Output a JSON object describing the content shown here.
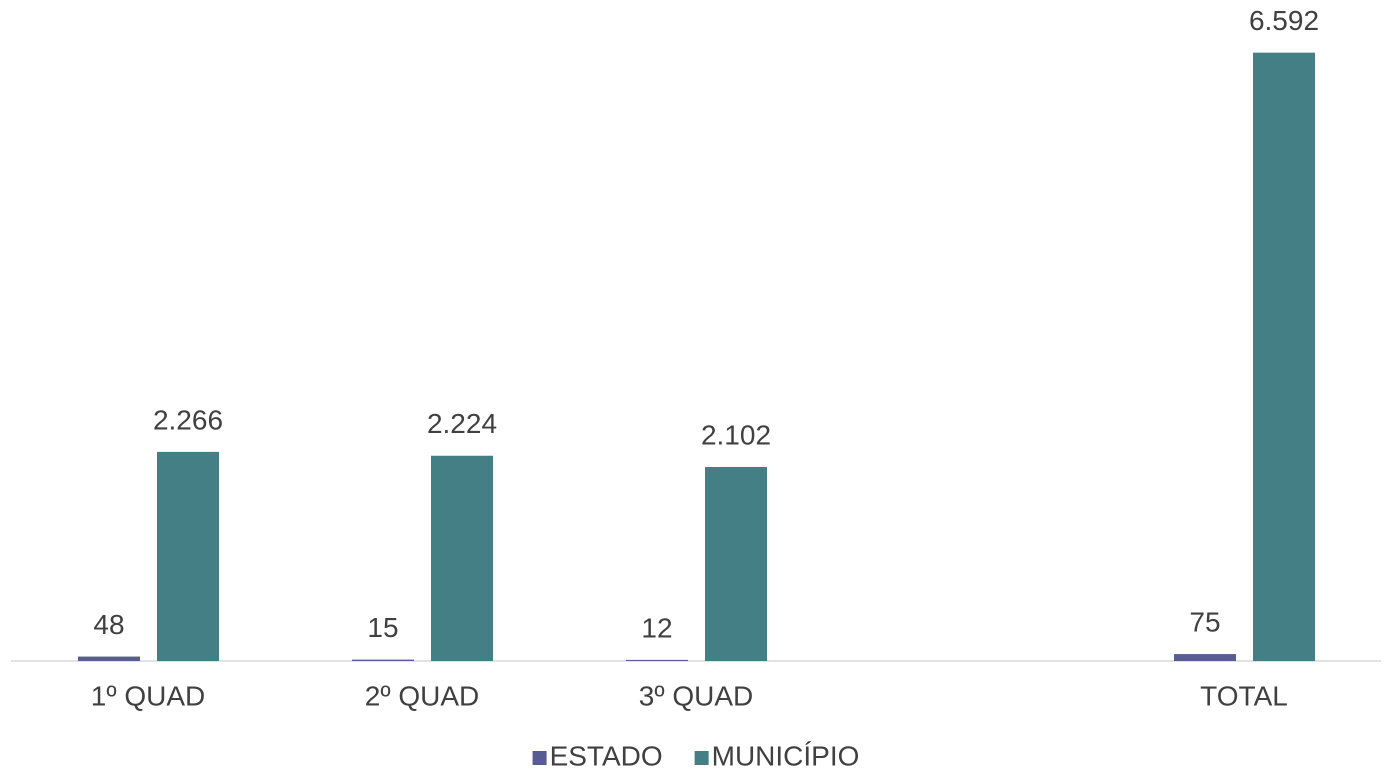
{
  "chart_data": {
    "type": "bar",
    "categories": [
      "1º QUAD",
      "2º QUAD",
      "3º QUAD",
      null,
      "TOTAL"
    ],
    "series": [
      {
        "name": "ESTADO",
        "color": "#585b94",
        "values": [
          48,
          15,
          12,
          null,
          75
        ]
      },
      {
        "name": "MUNICÍPIO",
        "color": "#437f84",
        "values": [
          2266,
          2224,
          2102,
          null,
          6592
        ],
        "value_labels": [
          "2.266",
          "2.224",
          "2.102",
          null,
          "6.592"
        ]
      }
    ],
    "ylim": [
      0,
      7000
    ],
    "grid": false,
    "legend": "bottom"
  }
}
